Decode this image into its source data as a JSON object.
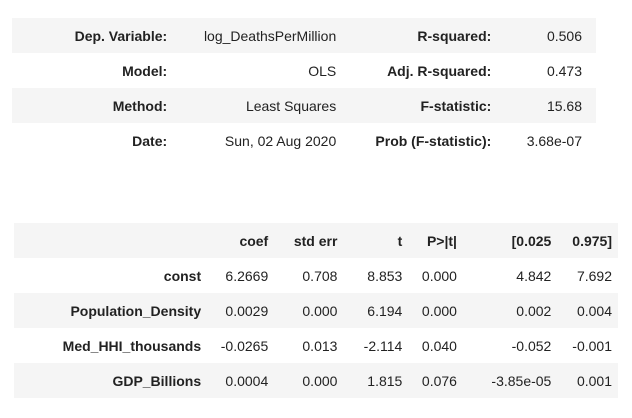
{
  "summary": {
    "rows": [
      {
        "label1": "Dep. Variable:",
        "value1": "log_DeathsPerMillion",
        "label2": "R-squared:",
        "value2": "0.506"
      },
      {
        "label1": "Model:",
        "value1": "OLS",
        "label2": "Adj. R-squared:",
        "value2": "0.473"
      },
      {
        "label1": "Method:",
        "value1": "Least Squares",
        "label2": "F-statistic:",
        "value2": "15.68"
      },
      {
        "label1": "Date:",
        "value1": "Sun, 02 Aug 2020",
        "label2": "Prob (F-statistic):",
        "value2": "3.68e-07"
      }
    ]
  },
  "coefficients": {
    "headers": [
      "",
      "coef",
      "std err",
      "t",
      "P>|t|",
      "[0.025",
      "0.975]"
    ],
    "rows": [
      [
        "const",
        "6.2669",
        "0.708",
        "8.853",
        "0.000",
        "4.842",
        "7.692"
      ],
      [
        "Population_Density",
        "0.0029",
        "0.000",
        "6.194",
        "0.000",
        "0.002",
        "0.004"
      ],
      [
        "Med_HHI_thousands",
        "-0.0265",
        "0.013",
        "-2.114",
        "0.040",
        "-0.052",
        "-0.001"
      ],
      [
        "GDP_Billions",
        "0.0004",
        "0.000",
        "1.815",
        "0.076",
        "-3.85e-05",
        "0.001"
      ]
    ]
  }
}
